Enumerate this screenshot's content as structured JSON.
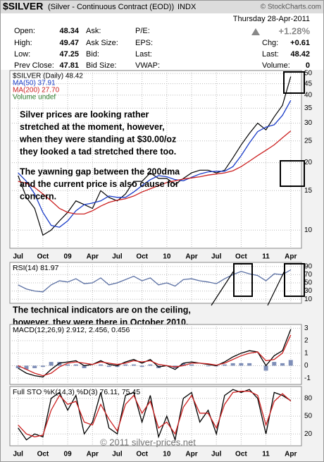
{
  "header": {
    "title": "$SILVER",
    "subtitle": "(Silver - Continuous Contract (EOD))",
    "exchange": "INDX",
    "source": "© StockCharts.com",
    "date": "Thursday  28-Apr-2011",
    "pct_change": "+1.28%",
    "left": [
      [
        {
          "label": "Open:",
          "value": "48.34"
        },
        {
          "label": "Ask:"
        },
        {
          "label": "P/E:"
        }
      ],
      [
        {
          "label": "High:",
          "value": "49.47"
        },
        {
          "label": "Ask Size:"
        },
        {
          "label": "EPS:"
        }
      ],
      [
        {
          "label": "Low:",
          "value": "47.25"
        },
        {
          "label": "Bid:"
        },
        {
          "label": "Last:"
        }
      ],
      [
        {
          "label": "Prev Close:",
          "value": "47.81"
        },
        {
          "label": "Bid Size:"
        },
        {
          "label": "VWAP:"
        }
      ]
    ],
    "right": [
      {
        "label": "Chg:",
        "value": "+0.61"
      },
      {
        "label": "Last:",
        "value": "48.42"
      },
      {
        "label": "Volume:",
        "value": "0"
      }
    ]
  },
  "watermark": "© 2011 silver-prices.net",
  "chart_data": [
    {
      "type": "line",
      "log_scale": true,
      "grid": true,
      "x": [
        0,
        1,
        2,
        3,
        4,
        5,
        6,
        7,
        8,
        9,
        10,
        11,
        12,
        13,
        14,
        15,
        16,
        17,
        18,
        19,
        20,
        21,
        22,
        23,
        24,
        25,
        26,
        27,
        28,
        29,
        30,
        31,
        32,
        33
      ],
      "xlim": [
        -1,
        34.3
      ],
      "xticks": [
        {
          "value": 0,
          "label": "Jul"
        },
        {
          "value": 3,
          "label": "Oct"
        },
        {
          "value": 6,
          "label": "09"
        },
        {
          "value": 9,
          "label": "Apr"
        },
        {
          "value": 12,
          "label": "Jul"
        },
        {
          "value": 15,
          "label": "Oct"
        },
        {
          "value": 18,
          "label": "10"
        },
        {
          "value": 21,
          "label": "Apr"
        },
        {
          "value": 24,
          "label": "Jul"
        },
        {
          "value": 27,
          "label": "Oct"
        },
        {
          "value": 30,
          "label": "11"
        },
        {
          "value": 33,
          "label": "Apr"
        }
      ],
      "ylim": [
        8.3,
        51.5
      ],
      "yticks": [
        10,
        15,
        20,
        25,
        30,
        35,
        40,
        45,
        50
      ],
      "series": [
        {
          "name": "$SILVER (Daily) 48.42",
          "color": "#000000",
          "values": [
            17.5,
            14.0,
            12.5,
            9.5,
            10.0,
            11.0,
            12.0,
            13.5,
            13.0,
            12.5,
            15.0,
            14.0,
            13.5,
            14.5,
            16.5,
            16.5,
            18.0,
            17.0,
            17.0,
            16.0,
            17.0,
            18.0,
            18.5,
            18.5,
            18.0,
            18.5,
            21.0,
            24.0,
            27.0,
            30.0,
            28.0,
            32.0,
            36.0,
            48.42
          ]
        },
        {
          "name": "MA(50) 37.91",
          "color": "#1a3cc8",
          "values": [
            18.0,
            16.5,
            14.5,
            12.0,
            10.5,
            10.3,
            11.0,
            12.2,
            13.0,
            13.2,
            13.5,
            14.2,
            14.0,
            14.0,
            14.8,
            15.8,
            16.8,
            17.5,
            17.3,
            16.8,
            16.6,
            17.2,
            17.8,
            18.2,
            18.3,
            18.3,
            19.2,
            21.5,
            24.5,
            27.5,
            28.8,
            29.5,
            32.5,
            37.91
          ]
        },
        {
          "name": "MA(200) 27.70",
          "color": "#cc2020",
          "values": [
            16.5,
            16.2,
            15.5,
            14.5,
            13.5,
            12.5,
            12.0,
            11.8,
            11.8,
            12.2,
            12.8,
            13.3,
            13.6,
            13.8,
            14.2,
            14.8,
            15.3,
            15.8,
            16.3,
            16.6,
            16.9,
            17.1,
            17.3,
            17.6,
            17.8,
            18.0,
            18.4,
            19.2,
            20.3,
            21.5,
            22.7,
            24.0,
            25.8,
            27.7
          ]
        }
      ],
      "legend_note": "Volume undef",
      "annotations": [
        [
          "Silver prices are looking rather",
          "stretched at the moment, however,",
          "when they were standing at $30.00/oz",
          "they looked a tad stretched there too."
        ],
        [
          "The yawning gap between the 200dma",
          "and the current price is also cause for",
          "concern."
        ]
      ]
    },
    {
      "type": "line",
      "grid": true,
      "title": "RSI(14) 81.97",
      "x": [
        0,
        1,
        2,
        3,
        4,
        5,
        6,
        7,
        8,
        9,
        10,
        11,
        12,
        13,
        14,
        15,
        16,
        17,
        18,
        19,
        20,
        21,
        22,
        23,
        24,
        25,
        26,
        27,
        28,
        29,
        30,
        31,
        32,
        33
      ],
      "xlim": [
        -1,
        34.3
      ],
      "ylim": [
        0,
        100
      ],
      "yticks": [
        10,
        30,
        50,
        70,
        90
      ],
      "series": [
        {
          "color": "#5a6fa3",
          "values": [
            45,
            35,
            30,
            28,
            45,
            55,
            52,
            60,
            48,
            50,
            62,
            45,
            50,
            58,
            66,
            55,
            62,
            45,
            50,
            42,
            58,
            60,
            55,
            52,
            48,
            60,
            70,
            78,
            72,
            68,
            55,
            72,
            70,
            81.97
          ]
        }
      ],
      "annotations": [
        [
          "The technical indicators are on the ceiling,",
          "however, they were there in October 2010."
        ]
      ]
    },
    {
      "type": "line",
      "grid": true,
      "title": "MACD(12,26,9) 2.912, 2.456, 0.456",
      "x": [
        0,
        1,
        2,
        3,
        4,
        5,
        6,
        7,
        8,
        9,
        10,
        11,
        12,
        13,
        14,
        15,
        16,
        17,
        18,
        19,
        20,
        21,
        22,
        23,
        24,
        25,
        26,
        27,
        28,
        29,
        30,
        31,
        32,
        33
      ],
      "xlim": [
        -1,
        34.3
      ],
      "ylim": [
        -1.5,
        3.3
      ],
      "yticks": [
        -1,
        0,
        1,
        2,
        3
      ],
      "series": [
        {
          "type": "bar",
          "color": "#7f8fb8",
          "values": [
            -0.2,
            -0.3,
            -0.2,
            -0.1,
            0.3,
            0.3,
            0.1,
            0.1,
            -0.2,
            0,
            0.1,
            -0.1,
            -0.1,
            0.1,
            0.1,
            -0.1,
            0.1,
            -0.2,
            0,
            -0.2,
            0.2,
            0.1,
            0,
            -0.05,
            -0.05,
            0.1,
            0.2,
            0.2,
            0.2,
            0,
            -0.4,
            0.3,
            0.2,
            0.456
          ]
        },
        {
          "color": "#000000",
          "values": [
            -0.2,
            -0.6,
            -0.8,
            -0.9,
            -0.3,
            0.2,
            0.3,
            0.4,
            0.0,
            0.1,
            0.4,
            0.1,
            0.0,
            0.3,
            0.5,
            0.2,
            0.5,
            -0.1,
            0.0,
            -0.3,
            0.2,
            0.3,
            0.2,
            0.1,
            0.0,
            0.3,
            0.7,
            1.0,
            1.2,
            1.1,
            0.0,
            0.8,
            1.2,
            2.912
          ]
        },
        {
          "color": "#cc2020",
          "values": [
            0.0,
            -0.3,
            -0.6,
            -0.8,
            -0.6,
            -0.1,
            0.2,
            0.3,
            0.2,
            0.1,
            0.3,
            0.2,
            0.1,
            0.2,
            0.4,
            0.3,
            0.4,
            0.1,
            0.0,
            -0.1,
            0.0,
            0.2,
            0.2,
            0.15,
            0.05,
            0.2,
            0.5,
            0.8,
            1.0,
            1.1,
            0.4,
            0.5,
            1.0,
            2.456
          ]
        }
      ]
    },
    {
      "type": "line",
      "grid": true,
      "title": "Full STO %K(14,3) %D(3) 76.11, 75.45",
      "x": [
        0,
        1,
        2,
        3,
        4,
        5,
        6,
        7,
        8,
        9,
        10,
        11,
        12,
        13,
        14,
        15,
        16,
        17,
        18,
        19,
        20,
        21,
        22,
        23,
        24,
        25,
        26,
        27,
        28,
        29,
        30,
        31,
        32,
        33
      ],
      "xlim": [
        -1,
        34.3
      ],
      "xticks": [
        {
          "value": 0,
          "label": "Jul"
        },
        {
          "value": 3,
          "label": "Oct"
        },
        {
          "value": 6,
          "label": "09"
        },
        {
          "value": 9,
          "label": "Apr"
        },
        {
          "value": 12,
          "label": "Jul"
        },
        {
          "value": 15,
          "label": "Oct"
        },
        {
          "value": 18,
          "label": "10"
        },
        {
          "value": 21,
          "label": "Apr"
        },
        {
          "value": 24,
          "label": "Jul"
        },
        {
          "value": 27,
          "label": "Oct"
        },
        {
          "value": 30,
          "label": "11"
        },
        {
          "value": 33,
          "label": "Apr"
        }
      ],
      "ylim": [
        0,
        100
      ],
      "yticks": [
        20,
        50,
        80
      ],
      "series": [
        {
          "color": "#000000",
          "values": [
            30,
            10,
            20,
            15,
            80,
            90,
            60,
            85,
            20,
            40,
            90,
            30,
            20,
            85,
            90,
            40,
            85,
            15,
            50,
            10,
            80,
            90,
            40,
            60,
            20,
            85,
            95,
            90,
            95,
            80,
            20,
            90,
            85,
            76.11
          ]
        },
        {
          "color": "#cc2020",
          "values": [
            35,
            20,
            15,
            18,
            60,
            85,
            70,
            75,
            40,
            35,
            70,
            45,
            25,
            70,
            85,
            55,
            75,
            30,
            40,
            20,
            65,
            85,
            55,
            55,
            30,
            70,
            90,
            92,
            92,
            85,
            35,
            75,
            88,
            75.45
          ]
        }
      ]
    }
  ]
}
